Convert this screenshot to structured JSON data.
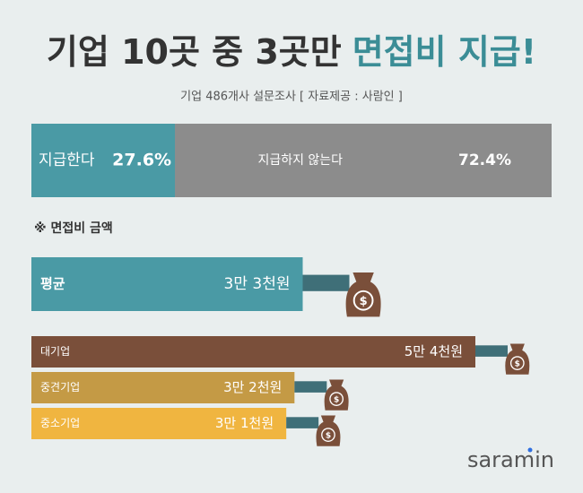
{
  "title": "기업 10곳 중 3곳만",
  "title_highlight": "면접비 지급!",
  "subtitle": "기업 486개사 설문조사  [ 자료제공 : 사람인 ]",
  "chart_data": [
    {
      "type": "share-bar",
      "categories": [
        "지급한다",
        "지급하지 않는다"
      ],
      "values": [
        27.6,
        72.4
      ],
      "value_labels": [
        "27.6%",
        "72.4%"
      ],
      "colors": [
        "#4a9aa5",
        "#8c8c8c"
      ]
    },
    {
      "type": "bar",
      "title": "※ 면접비 금액",
      "categories": [
        "평균",
        "대기업",
        "중견기업",
        "중소기업"
      ],
      "values": [
        33000,
        54000,
        32000,
        31000
      ],
      "value_labels": [
        "3만 3천원",
        "5만 4천원",
        "3만 2천원",
        "3만 1천원"
      ],
      "colors": [
        "#4a9aa5",
        "#7a4f3a",
        "#c49a45",
        "#f0b540"
      ]
    }
  ],
  "logo": "saramin"
}
